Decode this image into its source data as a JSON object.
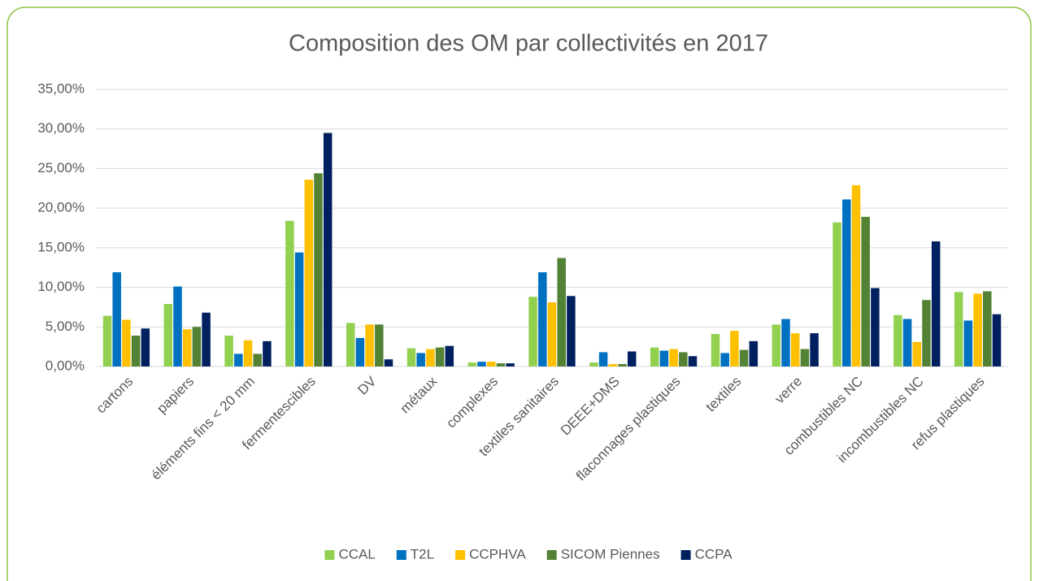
{
  "chart_data": {
    "type": "bar",
    "title": "Composition des OM par collectivités en 2017",
    "categories": [
      "cartons",
      "papiers",
      "éléments fins < 20 mm",
      "fermentescibles",
      "DV",
      "métaux",
      "complexes",
      "textiles sanitaires",
      "DEEE+DMS",
      "flaconnages plastiques",
      "textiles",
      "verre",
      "combustibles NC",
      "incombustibles NC",
      "refus plastiques"
    ],
    "series": [
      {
        "name": "CCAL",
        "color": "#92d050",
        "values": [
          6.4,
          7.9,
          3.9,
          18.4,
          5.5,
          2.3,
          0.5,
          8.8,
          0.5,
          2.4,
          4.1,
          5.3,
          18.2,
          6.5,
          9.4
        ]
      },
      {
        "name": "T2L",
        "color": "#0070c0",
        "values": [
          11.9,
          10.1,
          1.6,
          14.4,
          3.6,
          1.7,
          0.6,
          11.9,
          1.8,
          2.0,
          1.7,
          6.0,
          21.1,
          6.0,
          5.8
        ]
      },
      {
        "name": "CCPHVA",
        "color": "#ffc000",
        "values": [
          5.9,
          4.7,
          3.3,
          23.6,
          5.3,
          2.2,
          0.6,
          8.1,
          0.3,
          2.2,
          4.5,
          4.2,
          22.9,
          3.1,
          9.2
        ]
      },
      {
        "name": "SICOM Piennes",
        "color": "#548235",
        "values": [
          3.9,
          5.0,
          1.6,
          24.4,
          5.3,
          2.4,
          0.4,
          13.7,
          0.3,
          1.8,
          2.1,
          2.2,
          18.9,
          8.4,
          9.5
        ]
      },
      {
        "name": "CCPA",
        "color": "#002060",
        "values": [
          4.8,
          6.8,
          3.2,
          29.5,
          0.9,
          2.6,
          0.4,
          8.9,
          1.9,
          1.3,
          3.2,
          4.2,
          9.9,
          15.8,
          6.6
        ]
      }
    ],
    "ylim": [
      0,
      35
    ],
    "yticks": [
      {
        "value": 0,
        "label": "0,00%"
      },
      {
        "value": 5,
        "label": "5,00%"
      },
      {
        "value": 10,
        "label": "10,00%"
      },
      {
        "value": 15,
        "label": "15,00%"
      },
      {
        "value": 20,
        "label": "20,00%"
      },
      {
        "value": 25,
        "label": "25,00%"
      },
      {
        "value": 30,
        "label": "30,00%"
      },
      {
        "value": 35,
        "label": "35,00%"
      }
    ],
    "grid": true,
    "legend": "bottom"
  }
}
